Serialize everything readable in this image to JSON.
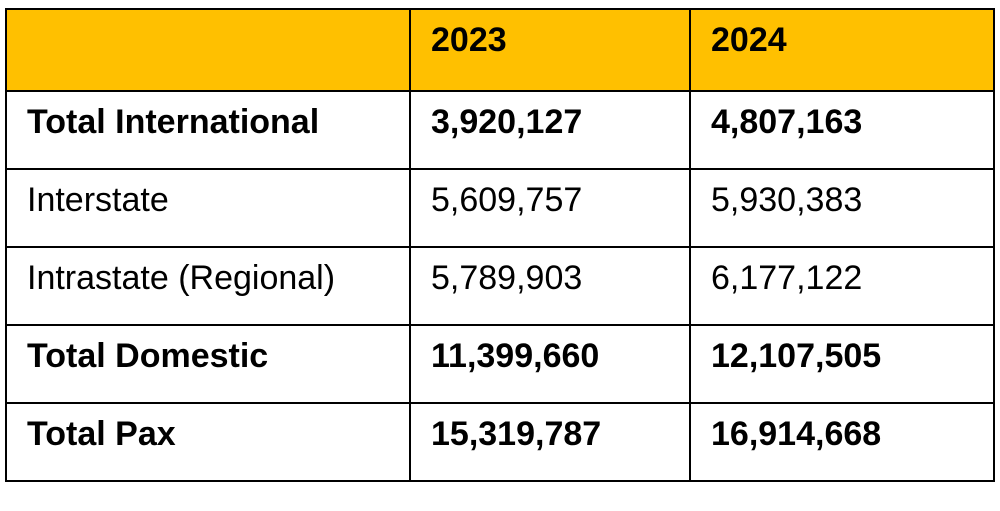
{
  "table": {
    "header": {
      "label": "",
      "col_2023": "2023",
      "col_2024": "2024"
    },
    "rows": [
      {
        "label": "Total International",
        "v2023": "3,920,127",
        "v2024": "4,807,163",
        "bold": true
      },
      {
        "label": "Interstate",
        "v2023": "5,609,757",
        "v2024": "5,930,383",
        "bold": false
      },
      {
        "label": "Intrastate (Regional)",
        "v2023": "5,789,903",
        "v2024": "6,177,122",
        "bold": false
      },
      {
        "label": "Total Domestic",
        "v2023": "11,399,660",
        "v2024": "12,107,505",
        "bold": true
      },
      {
        "label": "Total Pax",
        "v2023": "15,319,787",
        "v2024": "16,914,668",
        "bold": true
      }
    ]
  },
  "colors": {
    "header_bg": "#ffc000",
    "border": "#000000",
    "text": "#000000"
  }
}
